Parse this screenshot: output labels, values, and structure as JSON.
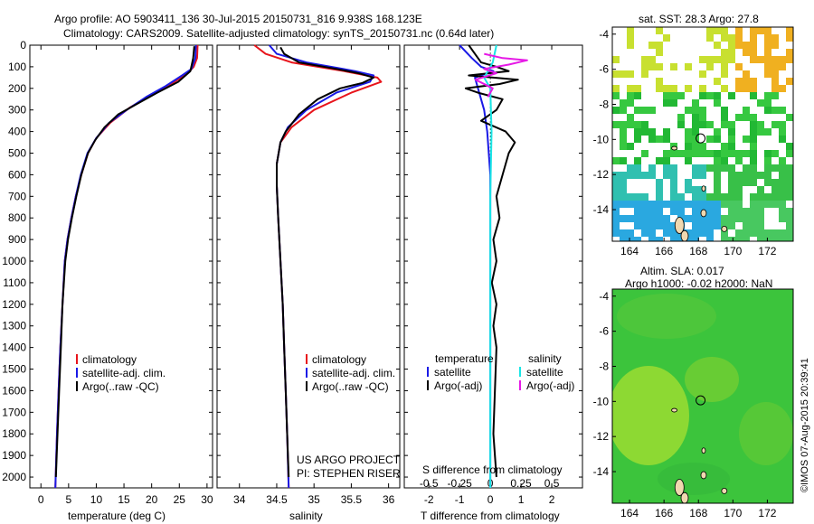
{
  "header": {
    "line1": "Argo profile: AO 5903411_136 30-Jul-2015 20150731_816 9.938S 168.123E",
    "line2": "Climatology: CARS2009. Satellite-adjusted climatology: synTS_20150731.nc (0.64d later)"
  },
  "colors": {
    "climatology": "#e8141b",
    "satellite": "#1a1ae6",
    "argo": "#000000",
    "satellite_salinity": "#19e6e6",
    "argo_salinity": "#e619e6"
  },
  "legend_left": {
    "clim": "climatology",
    "sat": "satellite-adj. clim.",
    "argo": "Argo(..raw -QC)"
  },
  "legend_diff": {
    "head_t": "temperature",
    "head_s": "salinity",
    "sat": "satellite",
    "argo": "Argo(-adj)"
  },
  "credits": {
    "line1": "US ARGO PROJECT",
    "line2": "PI: STEPHEN RISER"
  },
  "map_top": {
    "title": "sat. SST: 28.3 Argo: 27.8"
  },
  "map_bottom": {
    "title1": "Altim. SLA: 0.017",
    "title2": "Argo h1000: -0.02 h2000: NaN"
  },
  "stamp": "©IMOS 07-Aug-2015 20:39:41",
  "chart_data": [
    {
      "type": "line",
      "xlabel": "temperature (deg C)",
      "ylabel": "",
      "xlim": [
        -2,
        31
      ],
      "ylim": [
        2050,
        0
      ],
      "xticks": [
        "0",
        "5",
        "10",
        "15",
        "20",
        "25",
        "30"
      ],
      "yticks": [
        "0",
        "100",
        "200",
        "300",
        "400",
        "500",
        "600",
        "700",
        "800",
        "900",
        "1000",
        "1100",
        "1200",
        "1300",
        "1400",
        "1500",
        "1600",
        "1700",
        "1800",
        "1900",
        "2000"
      ],
      "series": [
        {
          "name": "climatology",
          "color_key": "climatology",
          "points": [
            [
              28.3,
              0
            ],
            [
              28.2,
              60
            ],
            [
              27.6,
              100
            ],
            [
              26.5,
              130
            ],
            [
              23.5,
              180
            ],
            [
              20,
              230
            ],
            [
              16,
              290
            ],
            [
              12.5,
              360
            ],
            [
              10,
              430
            ],
            [
              8.5,
              500
            ],
            [
              7.3,
              600
            ],
            [
              6.3,
              700
            ],
            [
              5.5,
              800
            ],
            [
              4.8,
              900
            ],
            [
              4.3,
              1000
            ],
            [
              3.9,
              1200
            ],
            [
              3.5,
              1400
            ],
            [
              3.2,
              1600
            ],
            [
              2.9,
              1800
            ],
            [
              2.6,
              2050
            ]
          ]
        },
        {
          "name": "satellite-adj. clim.",
          "color_key": "satellite",
          "points": [
            [
              28.0,
              0
            ],
            [
              27.9,
              60
            ],
            [
              27.2,
              110
            ],
            [
              25.5,
              140
            ],
            [
              22.5,
              190
            ],
            [
              19,
              240
            ],
            [
              15.5,
              300
            ],
            [
              12.3,
              360
            ],
            [
              10,
              430
            ],
            [
              8.4,
              500
            ],
            [
              7.2,
              600
            ],
            [
              6.3,
              700
            ],
            [
              5.5,
              800
            ],
            [
              4.8,
              900
            ],
            [
              4.3,
              1000
            ],
            [
              3.9,
              1200
            ],
            [
              3.5,
              1400
            ],
            [
              3.2,
              1600
            ],
            [
              2.9,
              1800
            ],
            [
              2.6,
              2050
            ]
          ]
        },
        {
          "name": "Argo(..raw -QC)",
          "color_key": "argo",
          "points": [
            [
              27.7,
              5
            ],
            [
              27.5,
              60
            ],
            [
              27,
              120
            ],
            [
              24.8,
              170
            ],
            [
              21,
              220
            ],
            [
              17.5,
              270
            ],
            [
              14,
              320
            ],
            [
              11.5,
              380
            ],
            [
              9.8,
              440
            ],
            [
              8.5,
              500
            ],
            [
              7.3,
              600
            ],
            [
              6.4,
              700
            ],
            [
              5.6,
              800
            ],
            [
              4.9,
              900
            ],
            [
              4.4,
              1000
            ],
            [
              3.9,
              1200
            ],
            [
              3.6,
              1400
            ],
            [
              3.3,
              1600
            ],
            [
              3.0,
              1800
            ],
            [
              2.7,
              2000
            ]
          ]
        }
      ]
    },
    {
      "type": "line",
      "xlabel": "salinity",
      "ylabel": "",
      "xlim": [
        33.7,
        36.15
      ],
      "ylim": [
        2050,
        0
      ],
      "xticks": [
        "34",
        "34.5",
        "35",
        "35.5",
        "36"
      ],
      "series": [
        {
          "name": "climatology",
          "color_key": "climatology",
          "points": [
            [
              34.2,
              0
            ],
            [
              34.35,
              40
            ],
            [
              34.7,
              80
            ],
            [
              35.4,
              120
            ],
            [
              35.85,
              150
            ],
            [
              35.9,
              170
            ],
            [
              35.5,
              220
            ],
            [
              35.0,
              300
            ],
            [
              34.7,
              380
            ],
            [
              34.55,
              450
            ],
            [
              34.5,
              550
            ],
            [
              34.5,
              650
            ],
            [
              34.52,
              800
            ],
            [
              34.55,
              1000
            ],
            [
              34.58,
              1200
            ],
            [
              34.6,
              1400
            ],
            [
              34.62,
              1600
            ],
            [
              34.64,
              1800
            ],
            [
              34.66,
              2050
            ]
          ]
        },
        {
          "name": "satellite-adj. clim.",
          "color_key": "satellite",
          "points": [
            [
              34.4,
              0
            ],
            [
              34.5,
              40
            ],
            [
              34.9,
              80
            ],
            [
              35.55,
              120
            ],
            [
              35.8,
              140
            ],
            [
              35.75,
              170
            ],
            [
              35.3,
              220
            ],
            [
              34.9,
              300
            ],
            [
              34.65,
              380
            ],
            [
              34.55,
              450
            ],
            [
              34.5,
              550
            ],
            [
              34.5,
              650
            ],
            [
              34.52,
              800
            ],
            [
              34.55,
              1000
            ],
            [
              34.58,
              1200
            ],
            [
              34.6,
              1400
            ],
            [
              34.62,
              1600
            ],
            [
              34.64,
              1800
            ],
            [
              34.66,
              2050
            ]
          ]
        },
        {
          "name": "Argo(..raw -QC)",
          "color_key": "argo",
          "points": [
            [
              34.55,
              10
            ],
            [
              34.6,
              40
            ],
            [
              34.8,
              80
            ],
            [
              35.3,
              110
            ],
            [
              35.6,
              130
            ],
            [
              35.8,
              150
            ],
            [
              35.65,
              175
            ],
            [
              35.35,
              200
            ],
            [
              35.05,
              250
            ],
            [
              34.8,
              320
            ],
            [
              34.62,
              400
            ],
            [
              34.55,
              450
            ],
            [
              34.5,
              550
            ],
            [
              34.5,
              650
            ],
            [
              34.52,
              800
            ],
            [
              34.55,
              1000
            ],
            [
              34.58,
              1200
            ],
            [
              34.6,
              1400
            ],
            [
              34.62,
              1600
            ],
            [
              34.64,
              1800
            ],
            [
              34.66,
              2000
            ]
          ]
        }
      ]
    },
    {
      "type": "line",
      "xlabel": "T difference from climatology",
      "xlabel2": "S difference from climatology",
      "ylabel": "",
      "xlim": [
        -2.8,
        3.0
      ],
      "x2lim": [
        -0.7,
        0.75
      ],
      "ylim": [
        2050,
        0
      ],
      "xticks": [
        "-2",
        "-1",
        "0",
        "1",
        "2"
      ],
      "x2ticks": [
        "-0.5",
        "-0.25",
        "0",
        "0.25",
        "0.5"
      ],
      "series": [
        {
          "name": "temperature satellite",
          "color_key": "satellite",
          "axis": "T",
          "points": [
            [
              -1.0,
              0
            ],
            [
              -0.6,
              60
            ],
            [
              -0.3,
              100
            ],
            [
              0.1,
              120
            ],
            [
              -0.5,
              150
            ],
            [
              -0.4,
              200
            ],
            [
              -0.3,
              250
            ],
            [
              -0.2,
              300
            ],
            [
              -0.1,
              400
            ],
            [
              0,
              600
            ],
            [
              0,
              2050
            ]
          ]
        },
        {
          "name": "temperature Argo(-adj)",
          "color_key": "argo",
          "axis": "T",
          "points": [
            [
              -0.7,
              0
            ],
            [
              -0.5,
              40
            ],
            [
              -0.3,
              80
            ],
            [
              0.2,
              100
            ],
            [
              0.6,
              120
            ],
            [
              -0.7,
              140
            ],
            [
              0.9,
              160
            ],
            [
              0.3,
              180
            ],
            [
              -0.8,
              200
            ],
            [
              -0.4,
              220
            ],
            [
              0.4,
              250
            ],
            [
              0.2,
              300
            ],
            [
              -0.3,
              350
            ],
            [
              0.5,
              400
            ],
            [
              0.8,
              450
            ],
            [
              0.6,
              500
            ],
            [
              0.4,
              600
            ],
            [
              0.2,
              700
            ],
            [
              0.3,
              800
            ],
            [
              0.1,
              900
            ],
            [
              0.2,
              1000
            ],
            [
              0.05,
              1100
            ],
            [
              0.2,
              1200
            ],
            [
              0.1,
              1300
            ],
            [
              0.2,
              1400
            ],
            [
              0.15,
              1600
            ],
            [
              0.1,
              1800
            ],
            [
              0.2,
              2000
            ]
          ]
        },
        {
          "name": "salinity satellite",
          "color_key": "satellite_salinity",
          "axis": "S",
          "points": [
            [
              0.05,
              0
            ],
            [
              0.02,
              80
            ],
            [
              -0.05,
              150
            ],
            [
              0.0,
              200
            ],
            [
              0.01,
              400
            ],
            [
              0.0,
              700
            ],
            [
              0.0,
              2050
            ]
          ]
        },
        {
          "name": "salinity Argo(-adj)",
          "color_key": "argo_salinity",
          "axis": "S",
          "points": [
            [
              -0.05,
              40
            ],
            [
              0.1,
              60
            ],
            [
              0.3,
              70
            ],
            [
              0.15,
              90
            ],
            [
              -0.05,
              110
            ],
            [
              0.05,
              130
            ],
            [
              -0.12,
              160
            ],
            [
              0.02,
              200
            ],
            [
              -0.02,
              240
            ]
          ]
        }
      ]
    }
  ],
  "maps": {
    "top": {
      "xticks": [
        "164",
        "166",
        "168",
        "170",
        "172"
      ],
      "yticks": [
        "-4",
        "-6",
        "-8",
        "-10",
        "-12",
        "-14"
      ],
      "xlim": [
        163,
        173.5
      ],
      "ylim": [
        -15.8,
        -3.6
      ],
      "argo_position": {
        "lon": 168.123,
        "lat": -9.938
      }
    },
    "bottom": {
      "xticks": [
        "164",
        "166",
        "168",
        "170",
        "172"
      ],
      "yticks": [
        "-4",
        "-6",
        "-8",
        "-10",
        "-12",
        "-14"
      ],
      "xlim": [
        163,
        173.5
      ],
      "ylim": [
        -15.8,
        -3.6
      ],
      "argo_position": {
        "lon": 168.123,
        "lat": -9.938
      }
    }
  }
}
